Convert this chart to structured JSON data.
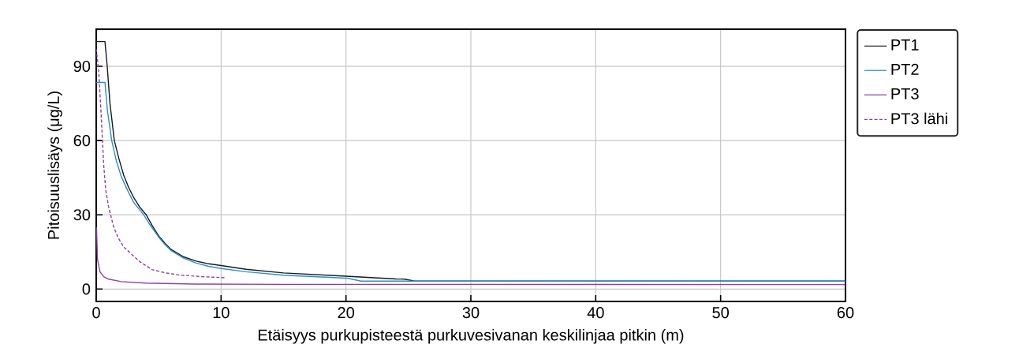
{
  "chart_data": {
    "type": "line",
    "xlabel": "Etäisyys purkupisteestä purkuvesivanan keskilinjaa pitkin (m)",
    "ylabel": "Pitoisuuslisäys (μg/L)",
    "xlim": [
      0,
      60
    ],
    "ylim": [
      -5,
      105
    ],
    "xticks": [
      0,
      10,
      20,
      30,
      40,
      50,
      60
    ],
    "yticks": [
      0,
      30,
      60,
      90
    ],
    "grid": true,
    "legend": "top right",
    "line_style": "solid",
    "marker": "none",
    "series": [
      {
        "name": "PT1",
        "color": "#1a1a1a",
        "x": [
          0,
          0.7,
          0.88,
          1.1,
          1.45,
          1.8,
          2.2,
          2.6,
          3,
          3.5,
          4,
          4.5,
          5,
          5.5,
          6,
          7,
          8,
          9,
          10,
          12,
          15,
          20,
          24,
          24.7,
          25.5,
          60
        ],
        "values": [
          100,
          100,
          90,
          75,
          60,
          53,
          46,
          41,
          37,
          33,
          30,
          25.5,
          21.5,
          18.5,
          16,
          13,
          11.3,
          10.2,
          9.5,
          8,
          6.5,
          5.2,
          4.1,
          4,
          3.2,
          3.2
        ]
      },
      {
        "name": "PT2",
        "color": "#2a8fd4",
        "x": [
          0,
          0.7,
          0.9,
          1.24,
          1.6,
          2,
          2.5,
          3,
          3.4,
          3.8,
          4.3,
          5,
          5.5,
          6,
          7,
          8,
          9,
          10,
          12,
          15,
          20,
          20.1,
          21.2,
          60
        ],
        "values": [
          83.5,
          83.5,
          72,
          60,
          52,
          45.5,
          40,
          35,
          32.5,
          30,
          26,
          21,
          18,
          15.5,
          12.5,
          10.5,
          9.2,
          8.3,
          7,
          5.6,
          4.4,
          4.4,
          3.2,
          3.2
        ]
      },
      {
        "name": "PT3",
        "color": "#8e3fa8",
        "x": [
          0.02,
          0.1,
          0.3,
          0.6,
          1,
          2,
          4,
          8,
          15,
          60
        ],
        "values": [
          25,
          12,
          7,
          5,
          4,
          3,
          2.4,
          2,
          1.9,
          1.8
        ]
      },
      {
        "name": "PT3 lähi",
        "color": "#8e3fa8",
        "line_style": "dashed",
        "x": [
          0,
          0.2,
          0.4,
          0.5,
          0.6,
          0.76,
          1,
          1.4,
          1.77,
          2.2,
          2.8,
          3.5,
          4.5,
          5.5,
          6.6,
          8.5,
          10.3
        ],
        "values": [
          97,
          88,
          70,
          60,
          50,
          40,
          33,
          25,
          20.6,
          17,
          14.2,
          11,
          7.8,
          6.6,
          5.7,
          5,
          4.6
        ]
      }
    ]
  }
}
